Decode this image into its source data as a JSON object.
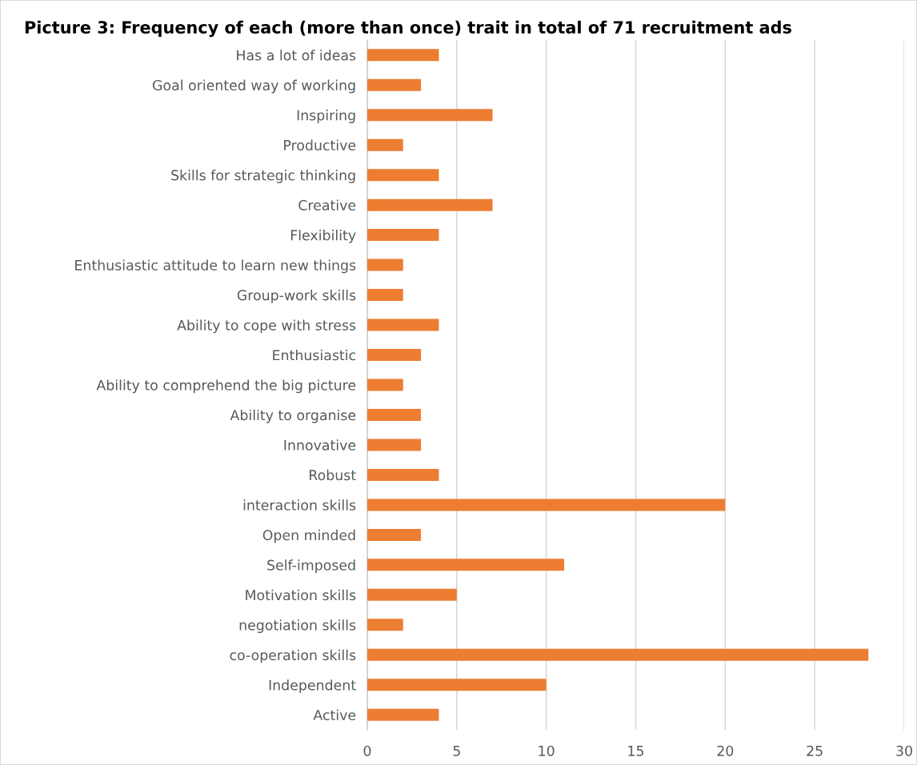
{
  "chart_data": {
    "type": "bar",
    "orientation": "horizontal",
    "title": "Picture 3: Frequency of each (more than once) trait in total of 71 recruitment ads",
    "categories": [
      "Has a lot of ideas",
      "Goal oriented way of working",
      "Inspiring",
      "Productive",
      "Skills for strategic thinking",
      "Creative",
      "Flexibility",
      "Enthusiastic attitude to learn new things",
      "Group-work skills",
      "Ability to cope with stress",
      "Enthusiastic",
      "Ability to comprehend the big picture",
      "Ability to organise",
      "Innovative",
      "Robust",
      "interaction skills",
      "Open minded",
      "Self-imposed",
      "Motivation skills",
      "negotiation skills",
      "co-operation skills",
      "Independent",
      "Active"
    ],
    "values": [
      4,
      3,
      7,
      2,
      4,
      7,
      4,
      2,
      2,
      4,
      3,
      2,
      3,
      3,
      4,
      20,
      3,
      11,
      5,
      2,
      28,
      10,
      4
    ],
    "color": "#ed7d31",
    "xlim": [
      0,
      30
    ],
    "xticks": [
      0,
      5,
      10,
      15,
      20,
      25,
      30
    ],
    "grid": "x"
  }
}
